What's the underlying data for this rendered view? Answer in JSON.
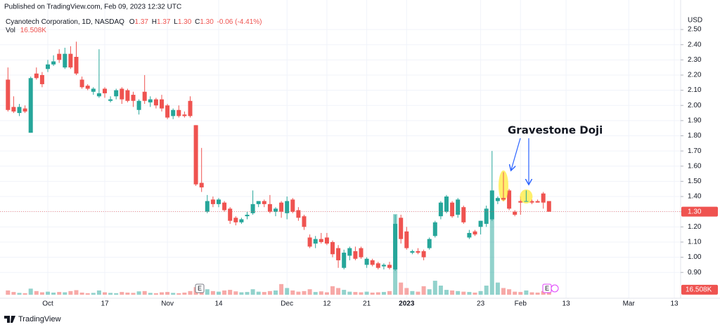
{
  "chart_data": {
    "type": "candlestick",
    "published": "Published on TradingView.com, Feb 09, 2023 12:32 UTC",
    "title": "Cyanotech Corporation, 1D, NASDAQ",
    "legend_keys": [
      "O",
      "H",
      "L",
      "C"
    ],
    "legend_values": [
      "1.37",
      "1.37",
      "1.30",
      "1.30"
    ],
    "change_label": "-0.06 (-4.41%)",
    "volume_title": "Vol",
    "volume_label": "16.508K",
    "last_price_label": "1.30",
    "currency": "USD",
    "annotation": "Gravestone Doji",
    "earnings_label": "E",
    "brand": "TradingView",
    "up_color": "#26a69a",
    "down_color": "#ef5350",
    "grid": true,
    "ylim": [
      0.73,
      2.565
    ],
    "yticks": [
      {
        "value": 0.9,
        "label": "0.90"
      },
      {
        "value": 1.0,
        "label": "1.00"
      },
      {
        "value": 1.1,
        "label": "1.10"
      },
      {
        "value": 1.2,
        "label": "1.20"
      },
      {
        "value": 1.3,
        "label": "1.30"
      },
      {
        "value": 1.4,
        "label": "1.40"
      },
      {
        "value": 1.5,
        "label": "1.50"
      },
      {
        "value": 1.6,
        "label": "1.60"
      },
      {
        "value": 1.7,
        "label": "1.70"
      },
      {
        "value": 1.8,
        "label": "1.80"
      },
      {
        "value": 1.9,
        "label": "1.90"
      },
      {
        "value": 2.0,
        "label": "2.00"
      },
      {
        "value": 2.1,
        "label": "2.10"
      },
      {
        "value": 2.2,
        "label": "2.20"
      },
      {
        "value": 2.3,
        "label": "2.30"
      },
      {
        "value": 2.4,
        "label": "2.40"
      },
      {
        "value": 2.5,
        "label": "2.50"
      }
    ],
    "volume_ylim": [
      0,
      300000
    ],
    "categories": [
      null,
      null,
      null,
      null,
      null,
      null,
      null,
      "Oct",
      null,
      null,
      null,
      null,
      null,
      null,
      null,
      null,
      null,
      "17",
      null,
      null,
      null,
      null,
      null,
      null,
      null,
      null,
      null,
      null,
      "Nov",
      null,
      null,
      null,
      null,
      null,
      null,
      null,
      null,
      "14",
      null,
      null,
      null,
      null,
      null,
      null,
      null,
      null,
      null,
      null,
      null,
      "Dec",
      null,
      null,
      null,
      null,
      null,
      null,
      "12",
      null,
      null,
      null,
      null,
      null,
      null,
      "21",
      null,
      null,
      null,
      null,
      null,
      null,
      "2023",
      null,
      null,
      null,
      null,
      null,
      null,
      null,
      null,
      null,
      null,
      null,
      null,
      "23",
      null,
      null,
      null,
      null,
      null,
      null,
      "Feb",
      null,
      null,
      null,
      null,
      null,
      null,
      null,
      "13",
      null,
      null,
      null,
      null,
      null,
      null,
      null,
      null,
      null,
      null,
      "Mar",
      null,
      null,
      null,
      null,
      null,
      null,
      null,
      "13"
    ],
    "open": [
      2.17,
      1.99,
      1.95,
      1.98,
      1.82,
      2.21,
      2.2,
      2.24,
      2.27,
      2.34,
      2.25,
      2.34,
      2.32,
      2.17,
      2.13,
      2.09,
      2.06,
      2.11,
      2.03,
      2.06,
      2.11,
      2.1,
      2.07,
      1.97,
      2.09,
      2.02,
      2.04,
      2.04,
      2.0,
      1.93,
      1.97,
      1.94,
      2.03,
      1.87,
      1.49,
      1.3,
      1.38,
      1.35,
      1.36,
      1.32,
      1.26,
      1.23,
      1.27,
      1.29,
      1.35,
      1.37,
      1.35,
      1.3,
      1.36,
      1.29,
      1.38,
      1.31,
      1.27,
      1.13,
      1.09,
      1.12,
      1.13,
      1.1,
      1.06,
      0.93,
      1.01,
      1.04,
      1.06,
      0.95,
      0.98,
      0.96,
      0.94,
      0.95,
      0.92,
      1.26,
      1.17,
      1.03,
      1.04,
      1.04,
      1.06,
      1.14,
      1.27,
      1.3,
      1.36,
      1.28,
      1.33,
      1.13,
      1.17,
      1.2,
      1.22,
      1.25,
      1.37,
      1.39,
      1.44,
      1.3,
      1.37,
      1.37,
      1.37,
      1.37,
      1.42,
      1.37,
      null,
      null,
      null,
      null,
      null,
      null,
      null,
      null,
      null,
      null,
      null,
      null,
      null,
      null,
      null,
      null,
      null,
      null,
      null,
      null,
      null,
      null
    ],
    "high": [
      2.25,
      2.06,
      2.01,
      2.0,
      2.19,
      2.25,
      2.22,
      2.3,
      2.33,
      2.37,
      2.38,
      2.39,
      2.42,
      2.19,
      2.14,
      2.12,
      2.37,
      2.12,
      2.06,
      2.11,
      2.12,
      2.11,
      2.09,
      2.04,
      2.2,
      2.06,
      2.05,
      2.07,
      2.01,
      1.98,
      2.0,
      1.96,
      2.06,
      1.87,
      1.72,
      1.41,
      1.4,
      1.39,
      1.37,
      1.33,
      1.27,
      1.26,
      1.3,
      1.44,
      1.37,
      1.38,
      1.41,
      1.33,
      1.37,
      1.4,
      1.39,
      1.33,
      1.28,
      1.15,
      1.14,
      1.16,
      1.16,
      1.11,
      1.08,
      1.05,
      1.07,
      1.07,
      1.07,
      1.0,
      0.99,
      0.97,
      0.96,
      0.97,
      1.28,
      1.28,
      1.2,
      1.05,
      1.06,
      1.05,
      1.13,
      1.24,
      1.37,
      1.41,
      1.37,
      1.39,
      1.34,
      1.18,
      1.18,
      1.24,
      1.34,
      1.7,
      1.4,
      1.56,
      1.45,
      1.31,
      1.4,
      1.44,
      1.38,
      1.38,
      1.43,
      1.37,
      null,
      null,
      null,
      null,
      null,
      null,
      null,
      null,
      null,
      null,
      null,
      null,
      null,
      null,
      null,
      null,
      null,
      null,
      null,
      null,
      null,
      null
    ],
    "low": [
      1.96,
      1.95,
      1.93,
      1.95,
      1.82,
      2.17,
      2.12,
      2.22,
      2.26,
      2.28,
      2.24,
      2.24,
      2.2,
      2.11,
      2.1,
      2.07,
      2.05,
      2.05,
      2.02,
      2.04,
      2.01,
      2.02,
      1.99,
      1.94,
      2.01,
      1.99,
      1.98,
      1.96,
      1.91,
      1.91,
      1.92,
      1.92,
      1.92,
      1.47,
      1.43,
      1.29,
      1.33,
      1.33,
      1.3,
      1.22,
      1.21,
      1.22,
      1.25,
      1.28,
      1.33,
      1.33,
      1.29,
      1.27,
      1.26,
      1.25,
      1.29,
      1.24,
      1.18,
      1.06,
      1.06,
      1.09,
      1.08,
      1.0,
      0.93,
      0.92,
      0.98,
      0.98,
      0.99,
      0.93,
      0.94,
      0.92,
      0.92,
      0.92,
      0.91,
      1.09,
      1.05,
      1.02,
      1.02,
      0.98,
      1.05,
      1.13,
      1.25,
      1.29,
      1.26,
      1.26,
      1.22,
      1.12,
      1.14,
      1.15,
      1.2,
      1.24,
      1.35,
      1.37,
      1.31,
      1.27,
      1.28,
      1.37,
      1.35,
      1.36,
      1.32,
      1.3,
      null,
      null,
      null,
      null,
      null,
      null,
      null,
      null,
      null,
      null,
      null,
      null,
      null,
      null,
      null,
      null,
      null,
      null,
      null,
      null,
      null,
      null
    ],
    "close": [
      1.97,
      1.96,
      1.99,
      1.96,
      2.18,
      2.18,
      2.14,
      2.27,
      2.29,
      2.3,
      2.34,
      2.25,
      2.21,
      2.12,
      2.11,
      2.11,
      2.08,
      2.08,
      2.04,
      2.1,
      2.04,
      2.03,
      2.03,
      2.03,
      2.03,
      2.04,
      2.0,
      1.98,
      1.92,
      1.97,
      1.93,
      1.93,
      1.93,
      1.48,
      1.46,
      1.37,
      1.35,
      1.38,
      1.31,
      1.24,
      1.23,
      1.25,
      1.28,
      1.35,
      1.37,
      1.35,
      1.3,
      1.32,
      1.3,
      1.37,
      1.3,
      1.26,
      1.2,
      1.07,
      1.12,
      1.1,
      1.09,
      1.02,
      0.98,
      1.03,
      1.06,
      0.99,
      1.0,
      0.99,
      0.95,
      0.93,
      0.95,
      0.93,
      1.22,
      1.12,
      1.06,
      1.04,
      1.03,
      1.0,
      1.12,
      1.23,
      1.36,
      1.4,
      1.27,
      1.38,
      1.23,
      1.16,
      1.15,
      1.24,
      1.32,
      1.44,
      1.39,
      1.38,
      1.32,
      1.28,
      1.36,
      1.37,
      1.36,
      1.36,
      1.36,
      1.3,
      null,
      null,
      null,
      null,
      null,
      null,
      null,
      null,
      null,
      null,
      null,
      null,
      null,
      null,
      null,
      null,
      null,
      null,
      null,
      null,
      null,
      null
    ],
    "volume": [
      14000,
      9000,
      6000,
      5000,
      20000,
      12000,
      8000,
      10000,
      7000,
      9000,
      8000,
      12000,
      15000,
      7000,
      5000,
      6000,
      14000,
      8000,
      6000,
      5000,
      9000,
      7000,
      6000,
      11000,
      12000,
      6000,
      5000,
      8000,
      9000,
      6000,
      5000,
      7000,
      12000,
      25000,
      14000,
      18000,
      12000,
      10000,
      14000,
      16000,
      11000,
      8000,
      9000,
      18000,
      10000,
      9000,
      12000,
      14000,
      35000,
      22000,
      14000,
      10000,
      12000,
      18000,
      9000,
      11000,
      8000,
      28000,
      22000,
      16000,
      10000,
      9000,
      8000,
      10000,
      7000,
      8000,
      9000,
      12000,
      265000,
      40000,
      22000,
      12000,
      10000,
      28000,
      18000,
      46000,
      30000,
      16000,
      14000,
      12000,
      10000,
      9000,
      7000,
      12000,
      30000,
      275000,
      40000,
      22000,
      18000,
      10000,
      9000,
      14000,
      8000,
      7000,
      12000,
      16508,
      null,
      null,
      null,
      null,
      null,
      null,
      null,
      null,
      null,
      null,
      null,
      null,
      null,
      null,
      null,
      null,
      null,
      null,
      null,
      null,
      null,
      null
    ]
  }
}
